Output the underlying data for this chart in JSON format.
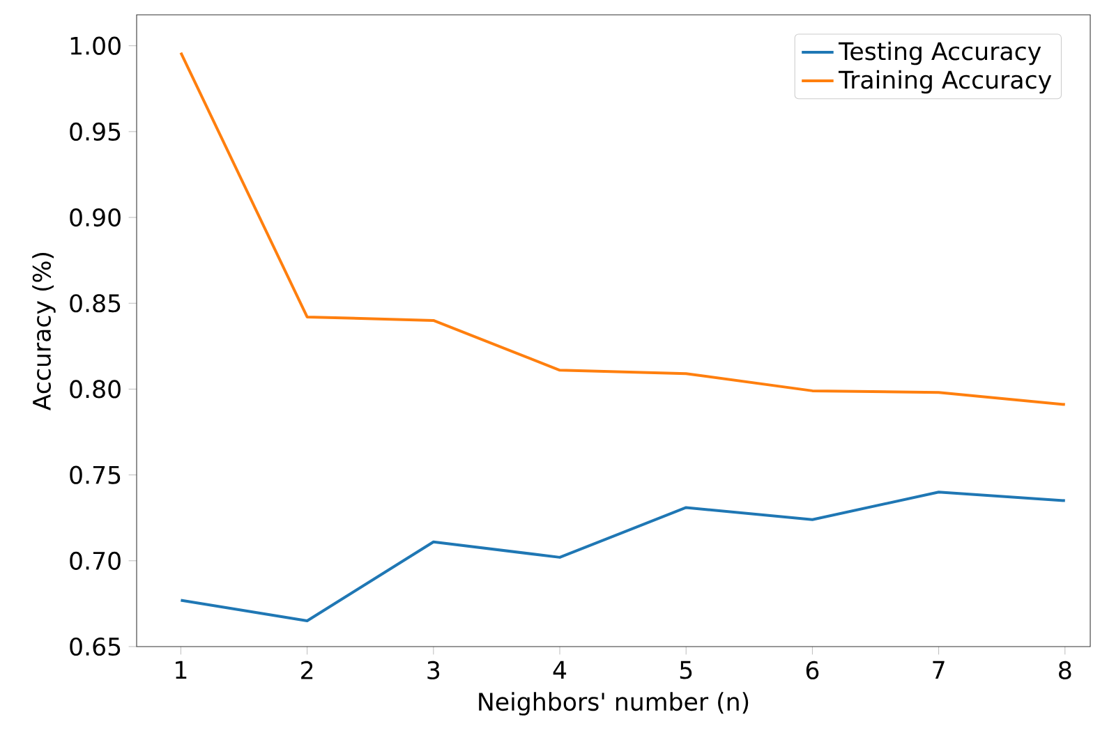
{
  "chart_data": {
    "type": "line",
    "xlabel": "Neighbors' number (n)",
    "ylabel": "Accuracy (%)",
    "x": [
      1,
      2,
      3,
      4,
      5,
      6,
      7,
      8
    ],
    "series": [
      {
        "name": "Testing Accuracy",
        "color": "#1f77b4",
        "values": [
          0.677,
          0.665,
          0.711,
          0.702,
          0.731,
          0.724,
          0.74,
          0.735
        ]
      },
      {
        "name": "Training Accuracy",
        "color": "#ff7f0e",
        "values": [
          0.996,
          0.842,
          0.84,
          0.811,
          0.809,
          0.799,
          0.798,
          0.791
        ]
      }
    ],
    "xlim": [
      0.65,
      8.2
    ],
    "ylim": [
      0.65,
      1.018
    ],
    "xticks": [
      1,
      2,
      3,
      4,
      5,
      6,
      7,
      8
    ],
    "yticks": [
      {
        "value": 0.65,
        "label": "0.65"
      },
      {
        "value": 0.7,
        "label": "0.70"
      },
      {
        "value": 0.75,
        "label": "0.75"
      },
      {
        "value": 0.8,
        "label": "0.80"
      },
      {
        "value": 0.85,
        "label": "0.85"
      },
      {
        "value": 0.9,
        "label": "0.90"
      },
      {
        "value": 0.95,
        "label": "0.95"
      },
      {
        "value": 1.0,
        "label": "1.00"
      }
    ],
    "legend": "top right",
    "grid": false,
    "marker": "none",
    "line_style": "solid"
  }
}
